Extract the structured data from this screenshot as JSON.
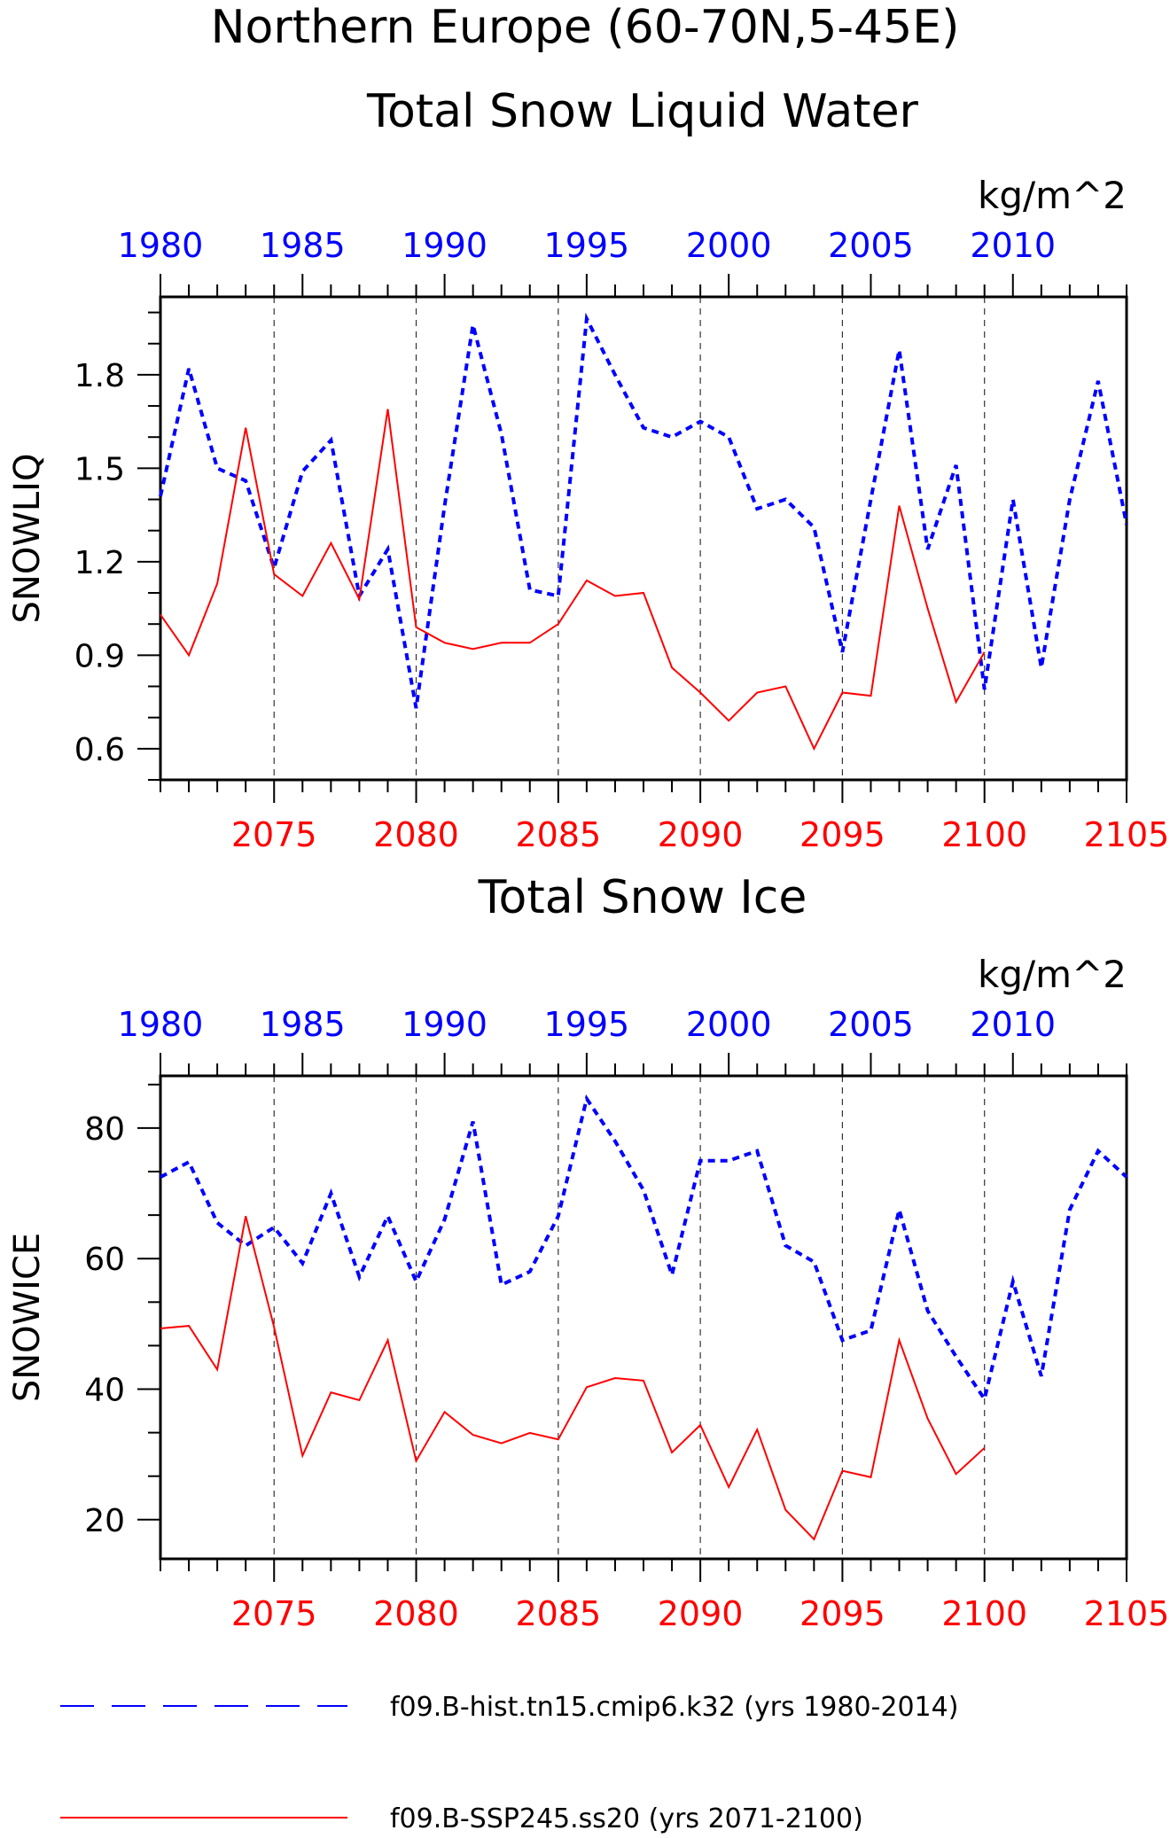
{
  "title_line1": "Northern Europe (60-70N,5-45E)",
  "colors": {
    "hist": "#0000ff",
    "future": "#ff0000",
    "axis": "#000000",
    "grid": "#333333"
  },
  "legend": [
    {
      "label": "f09.B-hist.tn15.cmip6.k32 (yrs 1980-2014)",
      "color": "#0000ff",
      "style": "dashed"
    },
    {
      "label": "f09.B-SSP245.ss20 (yrs 2071-2100)",
      "color": "#ff0000",
      "style": "solid"
    }
  ],
  "chart_data": [
    {
      "type": "line",
      "title": "Total Snow Liquid Water",
      "units": "kg/m^2",
      "ylabel": "SNOWLIQ",
      "ylim": [
        0.5,
        2.05
      ],
      "yticks": [
        0.6,
        0.9,
        1.2,
        1.5,
        1.8
      ],
      "ytick_labels": [
        "0.6",
        "0.9",
        "1.2",
        "1.5",
        "1.8"
      ],
      "bottom_axis": {
        "range": [
          2071,
          2105
        ],
        "ticks": [
          2075,
          2080,
          2085,
          2090,
          2095,
          2100,
          2105
        ],
        "tick_labels": [
          "2075",
          "2080",
          "2085",
          "2090",
          "2095",
          "2100",
          "2105"
        ]
      },
      "top_axis": {
        "range": [
          1980,
          2014
        ],
        "ticks": [
          1980,
          1985,
          1990,
          1995,
          2000,
          2005,
          2010
        ],
        "tick_labels": [
          "1980",
          "1985",
          "1990",
          "1995",
          "2000",
          "2005",
          "2010"
        ]
      },
      "grid_x": [
        2075,
        2080,
        2085,
        2090,
        2095,
        2100
      ],
      "series": [
        {
          "name": "f09.B-hist.tn15.cmip6.k32 (yrs 1980-2014)",
          "axis": "top",
          "style": "dashed",
          "x": [
            1980,
            1981,
            1982,
            1983,
            1984,
            1985,
            1986,
            1987,
            1988,
            1989,
            1990,
            1991,
            1992,
            1993,
            1994,
            1995,
            1996,
            1997,
            1998,
            1999,
            2000,
            2001,
            2002,
            2003,
            2004,
            2005,
            2006,
            2007,
            2008,
            2009,
            2010,
            2011,
            2012,
            2013,
            2014
          ],
          "values": [
            1.41,
            1.82,
            1.5,
            1.46,
            1.18,
            1.49,
            1.59,
            1.09,
            1.24,
            0.73,
            1.38,
            1.96,
            1.61,
            1.11,
            1.09,
            1.98,
            1.8,
            1.63,
            1.6,
            1.65,
            1.6,
            1.37,
            1.4,
            1.31,
            0.91,
            1.4,
            1.88,
            1.24,
            1.51,
            0.79,
            1.4,
            0.86,
            1.4,
            1.78,
            1.32
          ]
        },
        {
          "name": "f09.B-SSP245.ss20 (yrs 2071-2100)",
          "axis": "bottom",
          "style": "solid",
          "x": [
            2071,
            2072,
            2073,
            2074,
            2075,
            2076,
            2077,
            2078,
            2079,
            2080,
            2081,
            2082,
            2083,
            2084,
            2085,
            2086,
            2087,
            2088,
            2089,
            2090,
            2091,
            2092,
            2093,
            2094,
            2095,
            2096,
            2097,
            2098,
            2099,
            2100
          ],
          "values": [
            1.03,
            0.9,
            1.13,
            1.63,
            1.16,
            1.09,
            1.26,
            1.08,
            1.69,
            0.99,
            0.94,
            0.92,
            0.94,
            0.94,
            1.0,
            1.14,
            1.09,
            1.1,
            0.86,
            0.78,
            0.69,
            0.78,
            0.8,
            0.6,
            0.78,
            0.77,
            1.38,
            1.05,
            0.75,
            0.91
          ]
        }
      ]
    },
    {
      "type": "line",
      "title": "Total Snow Ice",
      "units": "kg/m^2",
      "ylabel": "SNOWICE",
      "ylim": [
        14,
        88
      ],
      "yticks": [
        20,
        40,
        60,
        80
      ],
      "ytick_labels": [
        "20",
        "40",
        "60",
        "80"
      ],
      "bottom_axis": {
        "range": [
          2071,
          2105
        ],
        "ticks": [
          2075,
          2080,
          2085,
          2090,
          2095,
          2100,
          2105
        ],
        "tick_labels": [
          "2075",
          "2080",
          "2085",
          "2090",
          "2095",
          "2100",
          "2105"
        ]
      },
      "top_axis": {
        "range": [
          1980,
          2014
        ],
        "ticks": [
          1980,
          1985,
          1990,
          1995,
          2000,
          2005,
          2010
        ],
        "tick_labels": [
          "1980",
          "1985",
          "1990",
          "1995",
          "2000",
          "2005",
          "2010"
        ]
      },
      "grid_x": [
        2075,
        2080,
        2085,
        2090,
        2095,
        2100
      ],
      "series": [
        {
          "name": "f09.B-hist.tn15.cmip6.k32 (yrs 1980-2014)",
          "axis": "top",
          "style": "dashed",
          "x": [
            1980,
            1981,
            1982,
            1983,
            1984,
            1985,
            1986,
            1987,
            1988,
            1989,
            1990,
            1991,
            1992,
            1993,
            1994,
            1995,
            1996,
            1997,
            1998,
            1999,
            2000,
            2001,
            2002,
            2003,
            2004,
            2005,
            2006,
            2007,
            2008,
            2009,
            2010,
            2011,
            2012,
            2013,
            2014
          ],
          "values": [
            72.5,
            74.8,
            65.5,
            62.0,
            64.8,
            59.3,
            70.0,
            57.2,
            66.5,
            56.5,
            66.0,
            81.0,
            56.0,
            58.0,
            66.5,
            84.5,
            78.0,
            70.5,
            57.5,
            75.0,
            75.0,
            76.5,
            62.0,
            59.5,
            47.5,
            49.0,
            67.5,
            52.0,
            45.0,
            38.5,
            56.5,
            42.0,
            67.5,
            76.5,
            72.5
          ]
        },
        {
          "name": "f09.B-SSP245.ss20 (yrs 2071-2100)",
          "axis": "bottom",
          "style": "solid",
          "x": [
            2071,
            2072,
            2073,
            2074,
            2075,
            2076,
            2077,
            2078,
            2079,
            2080,
            2081,
            2082,
            2083,
            2084,
            2085,
            2086,
            2087,
            2088,
            2089,
            2090,
            2091,
            2092,
            2093,
            2094,
            2095,
            2096,
            2097,
            2098,
            2099,
            2100
          ],
          "values": [
            49.3,
            49.7,
            43.0,
            66.5,
            49.5,
            29.8,
            39.5,
            38.3,
            47.5,
            29.0,
            36.5,
            33.0,
            31.7,
            33.3,
            32.3,
            40.3,
            41.7,
            41.3,
            30.3,
            34.5,
            25.0,
            33.8,
            21.5,
            17.0,
            27.5,
            26.5,
            47.5,
            35.5,
            27.0,
            31.0
          ]
        }
      ]
    }
  ]
}
